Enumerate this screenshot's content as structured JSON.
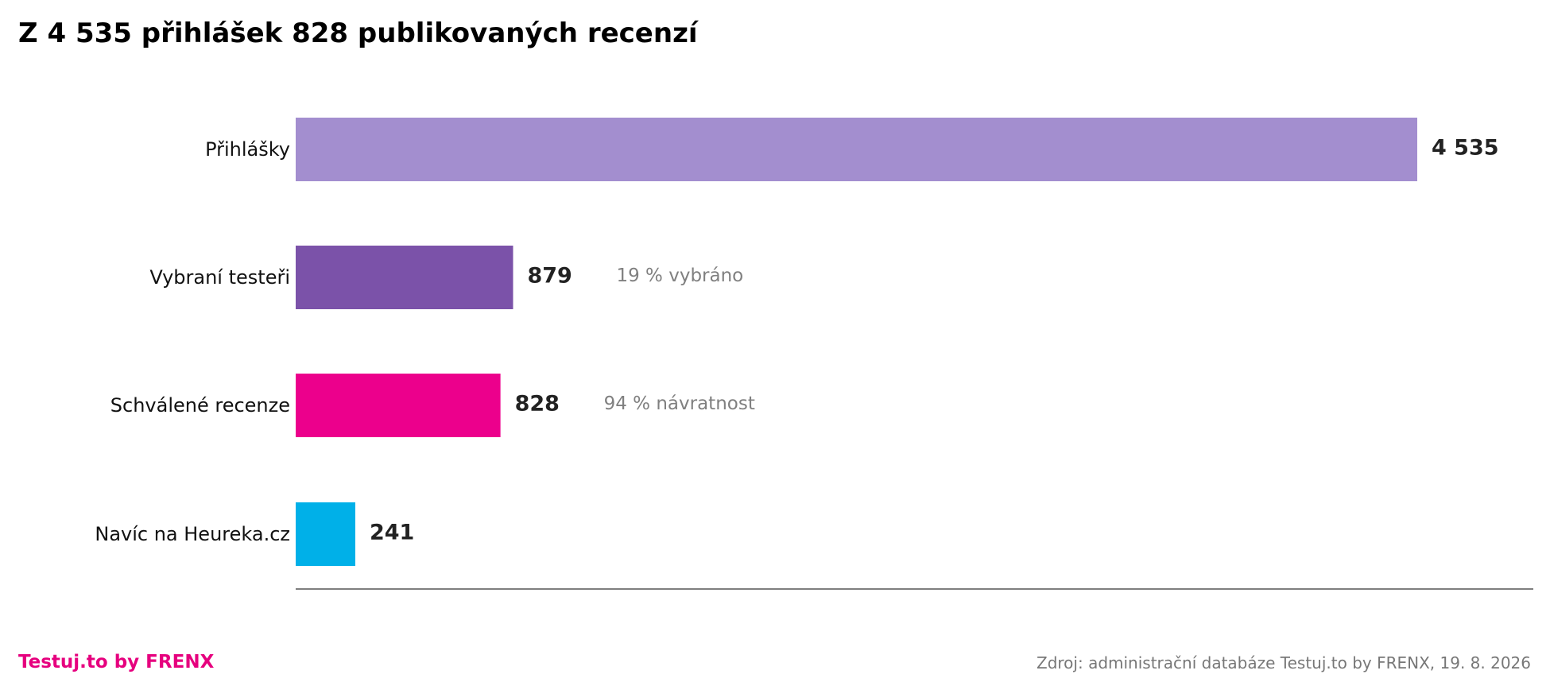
{
  "chart_data": {
    "type": "bar",
    "orientation": "horizontal",
    "title": "Z 4 535 přihlášek 828 publikovaných recenzí",
    "categories": [
      "Přihlášky",
      "Vybraní testeři",
      "Schválené recenze",
      "Navíc na Heureka.cz"
    ],
    "values": [
      4535,
      879,
      828,
      241
    ],
    "value_labels": [
      "4 535",
      "879",
      "828",
      "241"
    ],
    "annotations": [
      "",
      "19 % vybráno",
      "94 % návratnost",
      ""
    ],
    "colors": [
      "#a38ecf",
      "#7b52a9",
      "#ec008c",
      "#00b0e8"
    ],
    "xlim": [
      0,
      5000
    ],
    "xlabel": "",
    "ylabel": "",
    "grid": false,
    "legend": "none"
  },
  "footer": {
    "brand": "Testuj.to by FRENX",
    "brand_color": "#e6007e",
    "source": "Zdroj: administrační databáze Testuj.to by FRENX, 19. 8. 2026"
  }
}
